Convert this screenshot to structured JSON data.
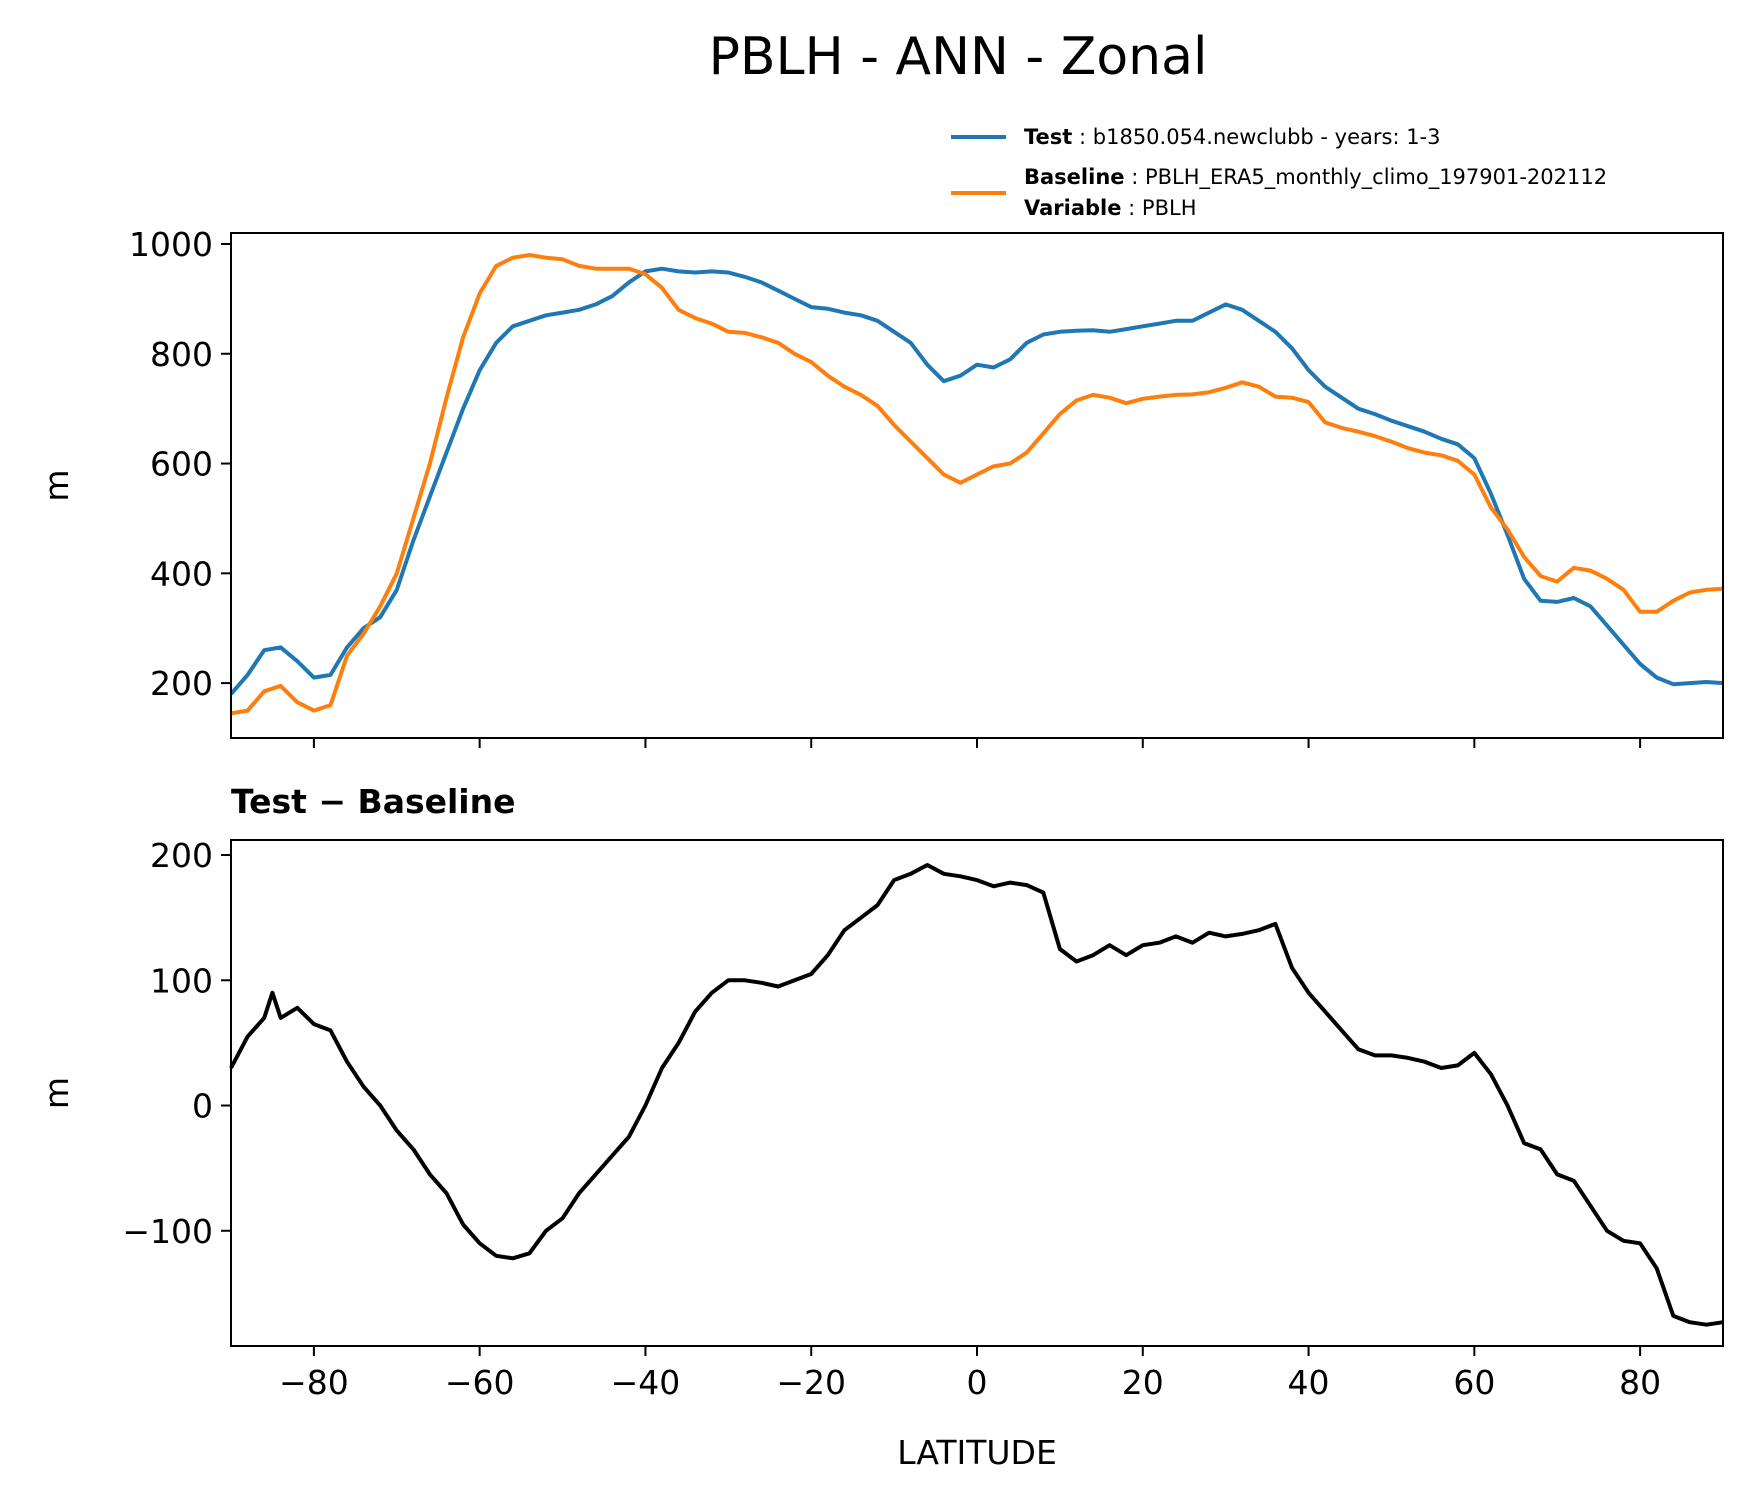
{
  "title": "PBLH - ANN - Zonal",
  "legend": {
    "test_key": "Test",
    "test_value": "b1850.054.newclubb - years: 1-3",
    "baseline_key": "Baseline",
    "baseline_value": "PBLH_ERA5_monthly_climo_197901-202112",
    "variable_key": "Variable",
    "variable_value": "PBLH"
  },
  "colors": {
    "test": "#1f77b4",
    "baseline": "#ff7f0e",
    "difference": "#000000"
  },
  "chart_data": [
    {
      "type": "line",
      "title": "PBLH - ANN - Zonal",
      "xlabel": "",
      "ylabel": "m",
      "xlim": [
        -90,
        90
      ],
      "ylim": [
        100,
        1020
      ],
      "xticks": [
        -80,
        -60,
        -40,
        -20,
        0,
        20,
        40,
        60,
        80
      ],
      "yticks": [
        200,
        400,
        600,
        800,
        1000
      ],
      "ytick_labels": [
        "200",
        "400",
        "600",
        "800",
        "1000"
      ],
      "show_xtick_labels": false,
      "legend_position": "above-right",
      "grid": false,
      "series": [
        {
          "name": "Test",
          "color": "#1f77b4",
          "x": [
            -90,
            -88,
            -86,
            -84,
            -82,
            -80,
            -78,
            -76,
            -74,
            -72,
            -70,
            -68,
            -66,
            -64,
            -62,
            -60,
            -58,
            -56,
            -54,
            -52,
            -50,
            -48,
            -46,
            -44,
            -42,
            -40,
            -38,
            -36,
            -34,
            -32,
            -30,
            -28,
            -26,
            -24,
            -22,
            -20,
            -18,
            -16,
            -14,
            -12,
            -10,
            -8,
            -6,
            -4,
            -2,
            0,
            2,
            4,
            6,
            8,
            10,
            12,
            14,
            16,
            18,
            20,
            22,
            24,
            26,
            28,
            30,
            32,
            34,
            36,
            38,
            40,
            42,
            44,
            46,
            48,
            50,
            52,
            54,
            56,
            58,
            60,
            62,
            64,
            66,
            68,
            70,
            72,
            74,
            76,
            78,
            80,
            82,
            84,
            86,
            88,
            90
          ],
          "y": [
            180,
            215,
            260,
            265,
            240,
            210,
            215,
            265,
            300,
            320,
            370,
            460,
            540,
            620,
            700,
            770,
            820,
            850,
            860,
            870,
            875,
            880,
            890,
            905,
            930,
            950,
            955,
            950,
            948,
            950,
            948,
            940,
            930,
            915,
            900,
            885,
            882,
            875,
            870,
            860,
            840,
            820,
            780,
            750,
            760,
            780,
            775,
            790,
            820,
            835,
            840,
            842,
            843,
            840,
            845,
            850,
            855,
            860,
            860,
            875,
            890,
            880,
            860,
            840,
            810,
            770,
            740,
            720,
            700,
            690,
            678,
            668,
            658,
            645,
            635,
            610,
            545,
            470,
            390,
            350,
            348,
            355,
            340,
            305,
            270,
            235,
            210,
            198,
            200,
            202,
            200
          ]
        },
        {
          "name": "Baseline",
          "color": "#ff7f0e",
          "x": [
            -90,
            -88,
            -86,
            -84,
            -82,
            -80,
            -78,
            -76,
            -74,
            -72,
            -70,
            -68,
            -66,
            -64,
            -62,
            -60,
            -58,
            -56,
            -54,
            -52,
            -50,
            -48,
            -46,
            -44,
            -42,
            -40,
            -38,
            -36,
            -34,
            -32,
            -30,
            -28,
            -26,
            -24,
            -22,
            -20,
            -18,
            -16,
            -14,
            -12,
            -10,
            -8,
            -6,
            -4,
            -2,
            0,
            2,
            4,
            6,
            8,
            10,
            12,
            14,
            16,
            18,
            20,
            22,
            24,
            26,
            28,
            30,
            32,
            34,
            36,
            38,
            40,
            42,
            44,
            46,
            48,
            50,
            52,
            54,
            56,
            58,
            60,
            62,
            64,
            66,
            68,
            70,
            72,
            74,
            76,
            78,
            80,
            82,
            84,
            86,
            88,
            90
          ],
          "y": [
            145,
            150,
            185,
            195,
            165,
            150,
            160,
            250,
            290,
            340,
            400,
            500,
            600,
            720,
            830,
            910,
            960,
            975,
            980,
            975,
            972,
            960,
            955,
            955,
            955,
            945,
            920,
            880,
            865,
            855,
            840,
            838,
            830,
            820,
            800,
            785,
            760,
            740,
            725,
            705,
            670,
            640,
            610,
            580,
            565,
            580,
            595,
            600,
            620,
            655,
            690,
            715,
            725,
            720,
            710,
            718,
            722,
            725,
            726,
            730,
            738,
            748,
            740,
            722,
            720,
            712,
            675,
            665,
            658,
            650,
            640,
            628,
            620,
            615,
            605,
            580,
            520,
            480,
            430,
            395,
            385,
            410,
            405,
            390,
            370,
            330,
            330,
            350,
            365,
            370,
            372
          ]
        }
      ]
    },
    {
      "type": "line",
      "title": "Test − Baseline",
      "xlabel": "LATITUDE",
      "ylabel": "m",
      "xlim": [
        -90,
        90
      ],
      "ylim": [
        -192,
        212
      ],
      "xticks": [
        -80,
        -60,
        -40,
        -20,
        0,
        20,
        40,
        60,
        80
      ],
      "xtick_labels": [
        "−80",
        "−60",
        "−40",
        "−20",
        "0",
        "20",
        "40",
        "60",
        "80"
      ],
      "yticks": [
        -100,
        0,
        100,
        200
      ],
      "ytick_labels": [
        "−100",
        "0",
        "100",
        "200"
      ],
      "show_xtick_labels": true,
      "grid": false,
      "series": [
        {
          "name": "",
          "color": "#000000",
          "x": [
            -90,
            -88,
            -86,
            -85,
            -84,
            -82,
            -80,
            -78,
            -76,
            -74,
            -72,
            -70,
            -68,
            -66,
            -64,
            -62,
            -60,
            -58,
            -56,
            -54,
            -52,
            -50,
            -48,
            -46,
            -44,
            -42,
            -40,
            -38,
            -36,
            -34,
            -32,
            -30,
            -28,
            -26,
            -24,
            -22,
            -20,
            -18,
            -16,
            -14,
            -12,
            -10,
            -8,
            -6,
            -4,
            -2,
            0,
            2,
            4,
            6,
            8,
            10,
            12,
            14,
            16,
            18,
            20,
            22,
            24,
            26,
            28,
            30,
            32,
            34,
            36,
            38,
            40,
            42,
            44,
            46,
            48,
            50,
            52,
            54,
            56,
            58,
            60,
            62,
            64,
            66,
            68,
            70,
            72,
            74,
            76,
            78,
            80,
            82,
            84,
            86,
            88,
            90
          ],
          "y": [
            30,
            55,
            70,
            90,
            70,
            78,
            65,
            60,
            35,
            15,
            0,
            -20,
            -35,
            -55,
            -70,
            -95,
            -110,
            -120,
            -122,
            -118,
            -100,
            -90,
            -70,
            -55,
            -40,
            -25,
            0,
            30,
            50,
            75,
            90,
            100,
            100,
            98,
            95,
            100,
            105,
            120,
            140,
            150,
            160,
            180,
            185,
            192,
            185,
            183,
            180,
            175,
            178,
            176,
            170,
            125,
            115,
            120,
            128,
            120,
            128,
            130,
            135,
            130,
            138,
            135,
            137,
            140,
            145,
            110,
            90,
            75,
            60,
            45,
            40,
            40,
            38,
            35,
            30,
            32,
            42,
            25,
            0,
            -30,
            -35,
            -55,
            -60,
            -80,
            -100,
            -108,
            -110,
            -130,
            -168,
            -173,
            -175,
            -173
          ]
        }
      ]
    }
  ]
}
